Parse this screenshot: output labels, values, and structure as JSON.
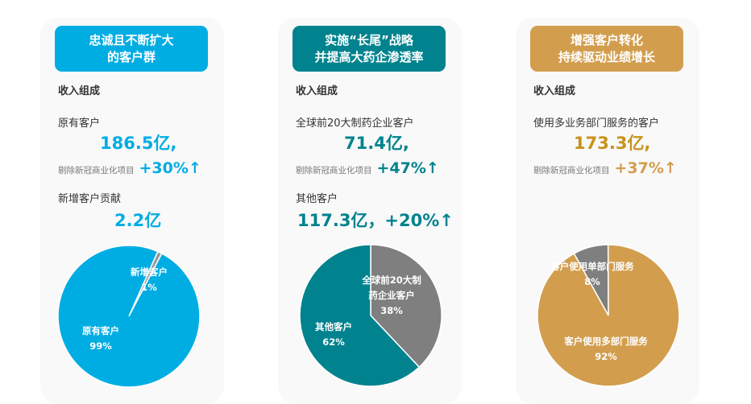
{
  "colors": {
    "blue": "#00ade3",
    "teal": "#00838e",
    "gold": "#d29e4e",
    "gold_text": "#c8921c",
    "gray": "#7f7f7f"
  },
  "cards": [
    {
      "title1": "忠诚且不断扩大",
      "title2": "的客户群",
      "section": "收入组成",
      "label1": "原有客户",
      "value1": "186.5亿,",
      "note": "剔除新冠商业化项目",
      "growth1": "+30%↑",
      "label2": "新增客户贡献",
      "value2": "2.2亿"
    },
    {
      "title1": "实施“长尾”战略",
      "title2": "并提高大药企渗透率",
      "section": "收入组成",
      "label1": "全球前20大制药企业客户",
      "value1": "71.4亿,",
      "note": "剔除新冠商业化项目",
      "growth1": "+47%↑",
      "label2": "其他客户",
      "value2": "117.3亿，+20%↑"
    },
    {
      "title1": "增强客户转化",
      "title2": "持续驱动业绩增长",
      "section": "收入组成",
      "label1": "使用多业务部门服务的客户",
      "value1": "173.3亿,",
      "note": "剔除新冠商业化项目",
      "growth1": "+37%↑"
    }
  ],
  "chart_data": [
    {
      "type": "pie",
      "slices": [
        {
          "label": "新增客户",
          "value": 1,
          "pct": "1%",
          "color": "#9a9a9a"
        },
        {
          "label": "原有客户",
          "value": 99,
          "pct": "99%",
          "color": "#00ade3"
        }
      ],
      "start_deg": 24
    },
    {
      "type": "pie",
      "slices": [
        {
          "label": "全球前20大制药企业客户",
          "value": 38,
          "pct": "38%",
          "color": "#7f7f7f"
        },
        {
          "label": "其他客户",
          "value": 62,
          "pct": "62%",
          "color": "#00838e"
        }
      ],
      "start_deg": 0
    },
    {
      "type": "pie",
      "slices": [
        {
          "label": "客户使用单部门服务",
          "value": 8,
          "pct": "8%",
          "color": "#7f7f7f"
        },
        {
          "label": "客户使用多部门服务",
          "value": 92,
          "pct": "92%",
          "color": "#d29e4e"
        }
      ],
      "start_deg": -29
    }
  ]
}
